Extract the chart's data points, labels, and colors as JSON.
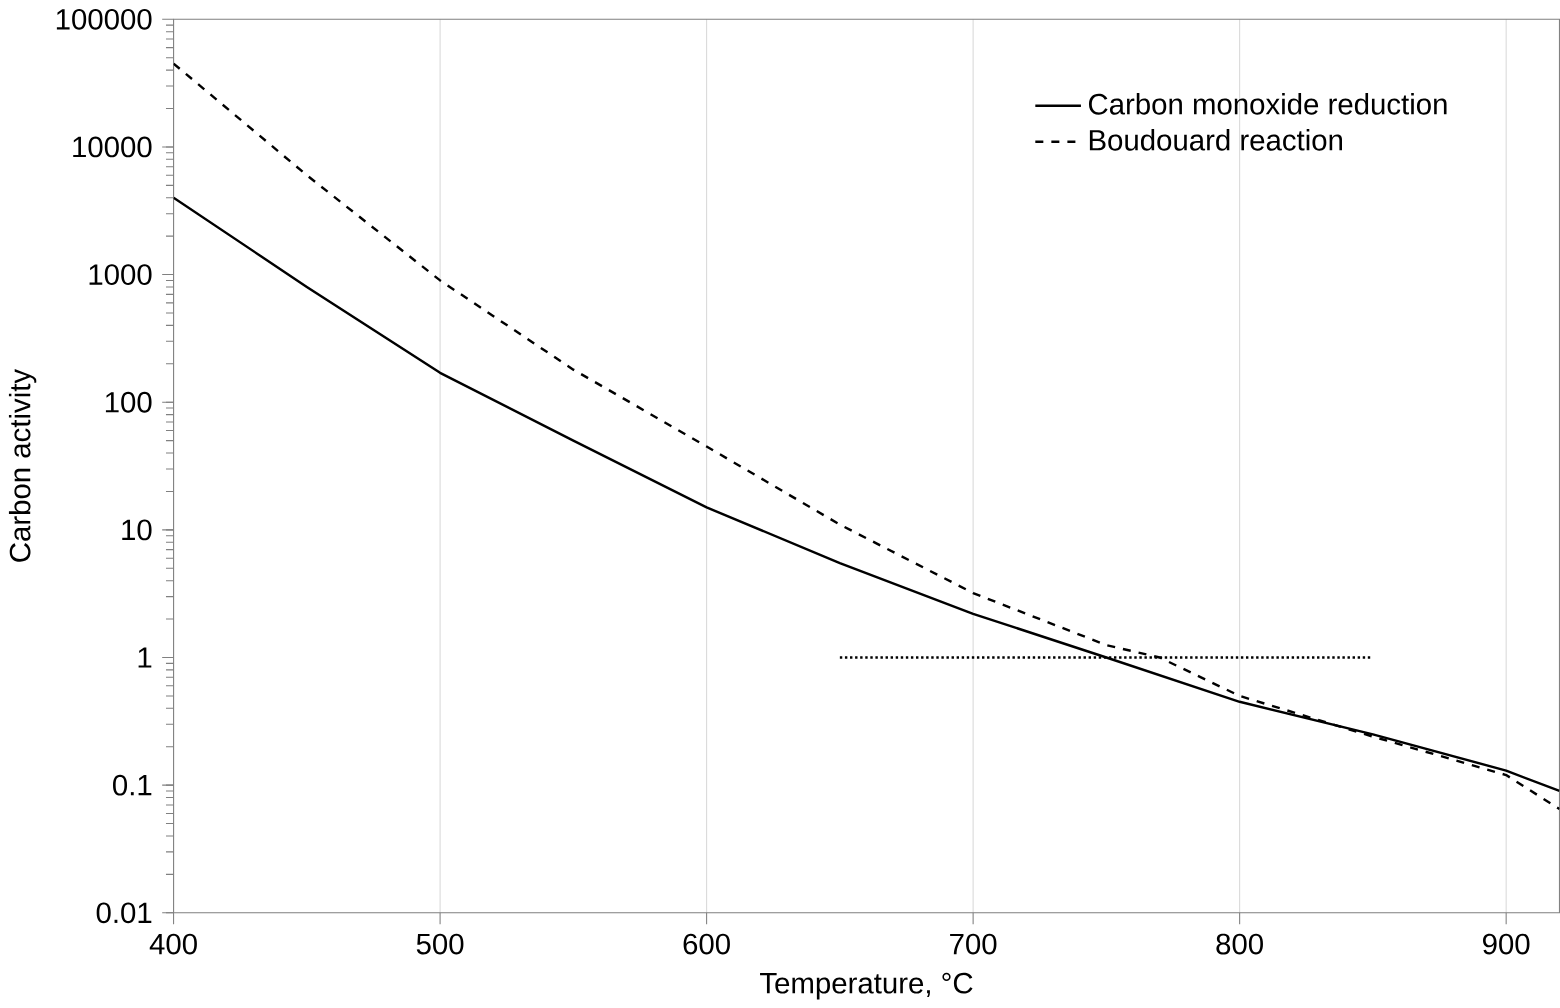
{
  "chart_data": {
    "type": "line",
    "xlabel": "Temperature, °C",
    "ylabel": "Carbon activity",
    "log": "y",
    "grid": "x",
    "legend": "top right",
    "xlim": [
      400,
      920
    ],
    "ylim": [
      0.01,
      100000
    ],
    "xticks": [
      400,
      500,
      600,
      700,
      800,
      900
    ],
    "yticks": [
      0.01,
      0.1,
      1,
      10,
      100,
      1000,
      10000,
      100000
    ],
    "series": [
      {
        "name": "Carbon monoxide reduction",
        "color": "#000000",
        "line_style": "solid",
        "x": [
          400,
          450,
          500,
          550,
          600,
          650,
          700,
          750,
          800,
          850,
          900,
          920
        ],
        "values": [
          4000,
          800,
          170,
          50,
          15,
          5.5,
          2.2,
          1,
          0.45,
          0.25,
          0.13,
          0.09
        ]
      },
      {
        "name": "Boudouard reaction",
        "color": "#000000",
        "line_style": "dashed",
        "x": [
          400,
          450,
          500,
          550,
          600,
          650,
          700,
          750,
          770,
          800,
          850,
          875,
          900,
          920
        ],
        "values": [
          45000,
          6000,
          900,
          180,
          45,
          11,
          3.2,
          1.25,
          1,
          0.5,
          0.24,
          0.17,
          0.12,
          0.065
        ]
      },
      {
        "color": "#000000",
        "line_style": "dotted",
        "x": [
          650,
          850
        ],
        "values": [
          1,
          1
        ]
      }
    ]
  }
}
